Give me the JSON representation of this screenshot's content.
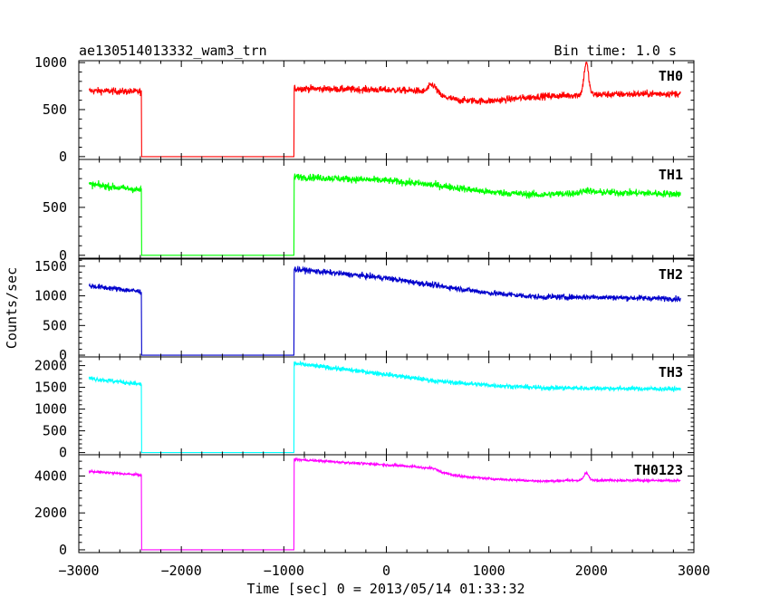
{
  "chart_data": {
    "type": "line",
    "title": "ae130514013332_wam3_trn",
    "bin_time": "Bin time: 1.0 s",
    "xlabel": "Time [sec] 0 = 2013/05/14 01:33:32",
    "ylabel": "Counts/sec",
    "xlim": [
      -3000,
      3000
    ],
    "x_ticks": [
      -3000,
      -2000,
      -1000,
      0,
      1000,
      2000,
      3000
    ],
    "x_tick_labels": [
      "−3000",
      "−2000",
      "−1000",
      "0",
      "1000",
      "2000",
      "3000"
    ],
    "gap": [
      -2390,
      -900
    ],
    "data_range": [
      -2900,
      2870
    ],
    "panels": [
      {
        "name": "TH0",
        "color": "#ff0000",
        "ylim": [
          -30,
          1020
        ],
        "y_ticks": [
          0,
          500,
          1000
        ],
        "noise": 35,
        "baseline": [
          [
            -2900,
            700
          ],
          [
            -2390,
            690
          ],
          [
            -900,
            725
          ],
          [
            0,
            710
          ],
          [
            300,
            700
          ],
          [
            700,
            600
          ],
          [
            1000,
            590
          ],
          [
            1500,
            640
          ],
          [
            2000,
            660
          ],
          [
            2870,
            670
          ]
        ],
        "peaks": [
          [
            450,
            100,
            40
          ],
          [
            1950,
            340,
            22
          ]
        ]
      },
      {
        "name": "TH1",
        "color": "#00ff00",
        "ylim": [
          -30,
          1000
        ],
        "y_ticks": [
          0,
          500
        ],
        "noise": 35,
        "baseline": [
          [
            -2900,
            740
          ],
          [
            -2390,
            680
          ],
          [
            -900,
            820
          ],
          [
            0,
            780
          ],
          [
            500,
            730
          ],
          [
            1000,
            660
          ],
          [
            1500,
            630
          ],
          [
            2000,
            660
          ],
          [
            2870,
            640
          ]
        ],
        "peaks": [
          [
            1950,
            25,
            30
          ]
        ]
      },
      {
        "name": "TH2",
        "color": "#0000cc",
        "ylim": [
          -30,
          1620
        ],
        "y_ticks": [
          0,
          500,
          1000,
          1500
        ],
        "noise": 45,
        "baseline": [
          [
            -2900,
            1170
          ],
          [
            -2390,
            1070
          ],
          [
            -900,
            1450
          ],
          [
            0,
            1300
          ],
          [
            500,
            1170
          ],
          [
            1000,
            1050
          ],
          [
            1500,
            980
          ],
          [
            2000,
            980
          ],
          [
            2870,
            950
          ]
        ],
        "peaks": []
      },
      {
        "name": "TH3",
        "color": "#00ffff",
        "ylim": [
          -50,
          2200
        ],
        "y_ticks": [
          0,
          500,
          1000,
          1500,
          2000
        ],
        "noise": 50,
        "baseline": [
          [
            -2900,
            1710
          ],
          [
            -2390,
            1570
          ],
          [
            -900,
            2050
          ],
          [
            0,
            1800
          ],
          [
            500,
            1640
          ],
          [
            1000,
            1550
          ],
          [
            1500,
            1490
          ],
          [
            2000,
            1480
          ],
          [
            2870,
            1460
          ]
        ],
        "peaks": []
      },
      {
        "name": "TH0123",
        "color": "#ff00ff",
        "ylim": [
          -150,
          5150
        ],
        "y_ticks": [
          0,
          2000,
          4000
        ],
        "noise": 60,
        "baseline": [
          [
            -2900,
            4250
          ],
          [
            -2390,
            4050
          ],
          [
            -900,
            4900
          ],
          [
            0,
            4600
          ],
          [
            300,
            4500
          ],
          [
            700,
            4000
          ],
          [
            1000,
            3850
          ],
          [
            1500,
            3720
          ],
          [
            2000,
            3780
          ],
          [
            2870,
            3740
          ]
        ],
        "peaks": [
          [
            450,
            120,
            40
          ],
          [
            1950,
            380,
            22
          ]
        ]
      }
    ]
  }
}
